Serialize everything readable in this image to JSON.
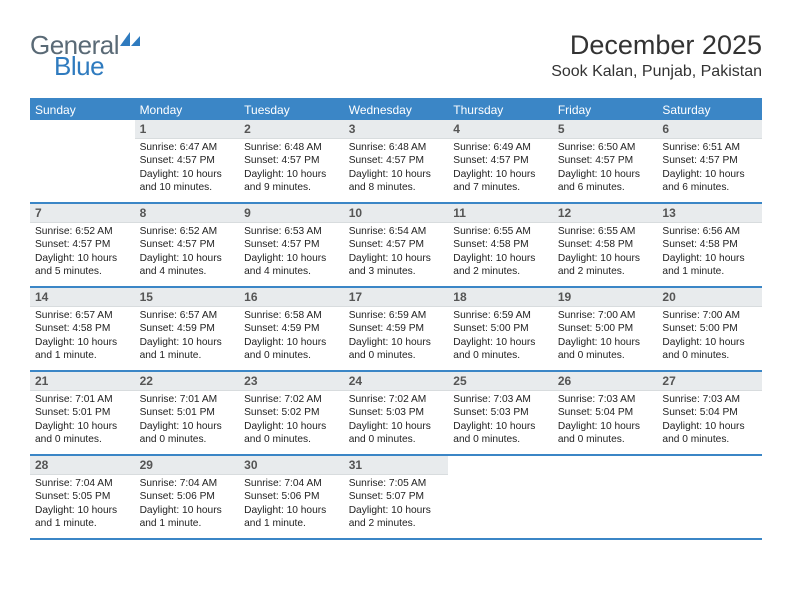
{
  "brand": {
    "name1": "General",
    "name2": "Blue"
  },
  "colors": {
    "header_blue": "#3b86c6",
    "daynum_bg": "#e8ebed",
    "logo_gray": "#5a6a76",
    "logo_blue": "#2f7bbf",
    "text": "#222222",
    "bg": "#ffffff"
  },
  "title": "December 2025",
  "location": "Sook Kalan, Punjab, Pakistan",
  "weekdays": [
    "Sunday",
    "Monday",
    "Tuesday",
    "Wednesday",
    "Thursday",
    "Friday",
    "Saturday"
  ],
  "calendar": {
    "type": "table",
    "columns": 7,
    "start_offset": 1,
    "days": [
      {
        "n": 1,
        "sunrise": "6:47 AM",
        "sunset": "4:57 PM",
        "daylight": "10 hours and 10 minutes."
      },
      {
        "n": 2,
        "sunrise": "6:48 AM",
        "sunset": "4:57 PM",
        "daylight": "10 hours and 9 minutes."
      },
      {
        "n": 3,
        "sunrise": "6:48 AM",
        "sunset": "4:57 PM",
        "daylight": "10 hours and 8 minutes."
      },
      {
        "n": 4,
        "sunrise": "6:49 AM",
        "sunset": "4:57 PM",
        "daylight": "10 hours and 7 minutes."
      },
      {
        "n": 5,
        "sunrise": "6:50 AM",
        "sunset": "4:57 PM",
        "daylight": "10 hours and 6 minutes."
      },
      {
        "n": 6,
        "sunrise": "6:51 AM",
        "sunset": "4:57 PM",
        "daylight": "10 hours and 6 minutes."
      },
      {
        "n": 7,
        "sunrise": "6:52 AM",
        "sunset": "4:57 PM",
        "daylight": "10 hours and 5 minutes."
      },
      {
        "n": 8,
        "sunrise": "6:52 AM",
        "sunset": "4:57 PM",
        "daylight": "10 hours and 4 minutes."
      },
      {
        "n": 9,
        "sunrise": "6:53 AM",
        "sunset": "4:57 PM",
        "daylight": "10 hours and 4 minutes."
      },
      {
        "n": 10,
        "sunrise": "6:54 AM",
        "sunset": "4:57 PM",
        "daylight": "10 hours and 3 minutes."
      },
      {
        "n": 11,
        "sunrise": "6:55 AM",
        "sunset": "4:58 PM",
        "daylight": "10 hours and 2 minutes."
      },
      {
        "n": 12,
        "sunrise": "6:55 AM",
        "sunset": "4:58 PM",
        "daylight": "10 hours and 2 minutes."
      },
      {
        "n": 13,
        "sunrise": "6:56 AM",
        "sunset": "4:58 PM",
        "daylight": "10 hours and 1 minute."
      },
      {
        "n": 14,
        "sunrise": "6:57 AM",
        "sunset": "4:58 PM",
        "daylight": "10 hours and 1 minute."
      },
      {
        "n": 15,
        "sunrise": "6:57 AM",
        "sunset": "4:59 PM",
        "daylight": "10 hours and 1 minute."
      },
      {
        "n": 16,
        "sunrise": "6:58 AM",
        "sunset": "4:59 PM",
        "daylight": "10 hours and 0 minutes."
      },
      {
        "n": 17,
        "sunrise": "6:59 AM",
        "sunset": "4:59 PM",
        "daylight": "10 hours and 0 minutes."
      },
      {
        "n": 18,
        "sunrise": "6:59 AM",
        "sunset": "5:00 PM",
        "daylight": "10 hours and 0 minutes."
      },
      {
        "n": 19,
        "sunrise": "7:00 AM",
        "sunset": "5:00 PM",
        "daylight": "10 hours and 0 minutes."
      },
      {
        "n": 20,
        "sunrise": "7:00 AM",
        "sunset": "5:00 PM",
        "daylight": "10 hours and 0 minutes."
      },
      {
        "n": 21,
        "sunrise": "7:01 AM",
        "sunset": "5:01 PM",
        "daylight": "10 hours and 0 minutes."
      },
      {
        "n": 22,
        "sunrise": "7:01 AM",
        "sunset": "5:01 PM",
        "daylight": "10 hours and 0 minutes."
      },
      {
        "n": 23,
        "sunrise": "7:02 AM",
        "sunset": "5:02 PM",
        "daylight": "10 hours and 0 minutes."
      },
      {
        "n": 24,
        "sunrise": "7:02 AM",
        "sunset": "5:03 PM",
        "daylight": "10 hours and 0 minutes."
      },
      {
        "n": 25,
        "sunrise": "7:03 AM",
        "sunset": "5:03 PM",
        "daylight": "10 hours and 0 minutes."
      },
      {
        "n": 26,
        "sunrise": "7:03 AM",
        "sunset": "5:04 PM",
        "daylight": "10 hours and 0 minutes."
      },
      {
        "n": 27,
        "sunrise": "7:03 AM",
        "sunset": "5:04 PM",
        "daylight": "10 hours and 0 minutes."
      },
      {
        "n": 28,
        "sunrise": "7:04 AM",
        "sunset": "5:05 PM",
        "daylight": "10 hours and 1 minute."
      },
      {
        "n": 29,
        "sunrise": "7:04 AM",
        "sunset": "5:06 PM",
        "daylight": "10 hours and 1 minute."
      },
      {
        "n": 30,
        "sunrise": "7:04 AM",
        "sunset": "5:06 PM",
        "daylight": "10 hours and 1 minute."
      },
      {
        "n": 31,
        "sunrise": "7:05 AM",
        "sunset": "5:07 PM",
        "daylight": "10 hours and 2 minutes."
      }
    ]
  },
  "labels": {
    "sunrise": "Sunrise:",
    "sunset": "Sunset:",
    "daylight": "Daylight:"
  }
}
